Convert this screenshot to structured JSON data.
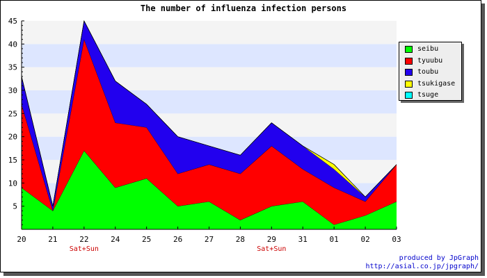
{
  "chart_data": {
    "type": "area",
    "title": "The number of influenza infection persons",
    "categories": [
      "20",
      "21",
      "22",
      "24",
      "25",
      "26",
      "27",
      "28",
      "29",
      "31",
      "01",
      "02",
      "03"
    ],
    "sublabels": [
      "",
      "",
      "Sat+Sun",
      "",
      "",
      "",
      "",
      "",
      "Sat+Sun",
      "",
      "",
      "",
      ""
    ],
    "stacked": true,
    "ylim": [
      0,
      45
    ],
    "yticks": [
      5,
      10,
      15,
      20,
      25,
      30,
      35,
      40,
      45
    ],
    "series": [
      {
        "name": "seibu",
        "color": "#00ff00",
        "values": [
          9,
          4,
          17,
          9,
          11,
          5,
          6,
          2,
          5,
          6,
          1,
          3,
          6
        ]
      },
      {
        "name": "tyuubu",
        "color": "#ff0000",
        "values": [
          18,
          0,
          24,
          14,
          11,
          7,
          8,
          10,
          13,
          7,
          8,
          3,
          8
        ]
      },
      {
        "name": "toubu",
        "color": "#2200ee",
        "values": [
          6,
          1,
          4,
          9,
          5,
          8,
          4,
          4,
          5,
          5,
          4,
          1,
          0
        ]
      },
      {
        "name": "tsukigase",
        "color": "#ffff00",
        "values": [
          0,
          0,
          0,
          0,
          0,
          0,
          0,
          0,
          0,
          0,
          1,
          0,
          0
        ]
      },
      {
        "name": "tsuge",
        "color": "#00ffff",
        "values": [
          0,
          0,
          0,
          0,
          0,
          0,
          0,
          0,
          0,
          0,
          0,
          0,
          0
        ]
      }
    ],
    "legend": "right",
    "grid": true,
    "band_colors": [
      "#f4f4f4",
      "#dde6ff"
    ],
    "sublabel_color": "#cc0000"
  },
  "credit": {
    "line1": "produced by JpGraph",
    "line2": "http://asial.co.jp/jpgraph/"
  }
}
